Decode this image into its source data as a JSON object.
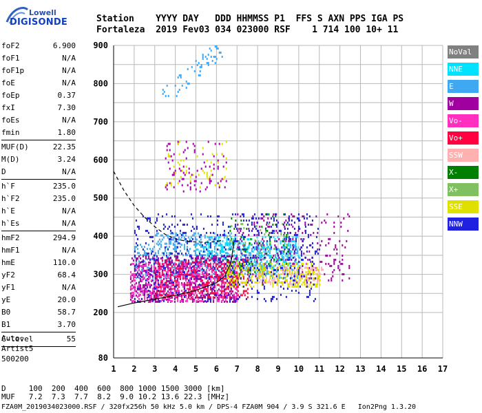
{
  "logo": {
    "line1": "Lowell",
    "line2": "DIGISONDE"
  },
  "header": {
    "line1": "Station    YYYY DAY   DDD HHMMSS P1  FFS S AXN PPS IGA PS",
    "line2": "Fortaleza  2019 Fev03 034 023000 RSF    1 714 100 10+ 11"
  },
  "params": [
    {
      "k": "foF2",
      "v": "6.900"
    },
    {
      "k": "foF1",
      "v": "N/A"
    },
    {
      "k": "foF1p",
      "v": "N/A"
    },
    {
      "k": "foE",
      "v": "N/A"
    },
    {
      "k": "foEp",
      "v": "0.37"
    },
    {
      "k": "fxI",
      "v": "7.30"
    },
    {
      "k": "foEs",
      "v": "N/A"
    },
    {
      "k": "fmin",
      "v": "1.80",
      "sep": true
    },
    {
      "k": "MUF(D)",
      "v": "22.35"
    },
    {
      "k": "M(D)",
      "v": "3.24"
    },
    {
      "k": "D",
      "v": "N/A",
      "sep": true
    },
    {
      "k": "h`F",
      "v": "235.0"
    },
    {
      "k": "h`F2",
      "v": "235.0"
    },
    {
      "k": "h`E",
      "v": "N/A"
    },
    {
      "k": "h`Es",
      "v": "N/A",
      "sep": true
    },
    {
      "k": "hmF2",
      "v": "294.9"
    },
    {
      "k": "hmF1",
      "v": "N/A"
    },
    {
      "k": "hmE",
      "v": "110.0"
    },
    {
      "k": "yF2",
      "v": "68.4"
    },
    {
      "k": "yF1",
      "v": "N/A"
    },
    {
      "k": "yE",
      "v": "20.0"
    },
    {
      "k": "B0",
      "v": "58.7"
    },
    {
      "k": "B1",
      "v": "3.70",
      "sep": true
    },
    {
      "k": "C-level",
      "v": "55",
      "sep": true
    }
  ],
  "auto": {
    "label": "Auto:",
    "artist": "Artist5",
    "number": "500200"
  },
  "legend": [
    {
      "label": "NoVal",
      "color": "#808080"
    },
    {
      "label": "NNE",
      "color": "#00e0ff"
    },
    {
      "label": "E",
      "color": "#40a8f0"
    },
    {
      "label": "W",
      "color": "#a000a0"
    },
    {
      "label": "Vo-",
      "color": "#ff30c0"
    },
    {
      "label": "Vo+",
      "color": "#ff0040"
    },
    {
      "label": "SSW",
      "color": "#ffb0b0"
    },
    {
      "label": "X-",
      "color": "#008000"
    },
    {
      "label": "X+",
      "color": "#80c060"
    },
    {
      "label": "SSE",
      "color": "#e0e000"
    },
    {
      "label": "NNW",
      "color": "#2020e0"
    }
  ],
  "bottom": {
    "d_line": "D     100  200  400  600  800 1000 1500 3000 [km]",
    "muf_line": "MUF   7.2  7.3  7.7  8.2  9.0 10.2 13.6 22.3 [MHz]"
  },
  "footer": "FZA0M_2019034023000.RSF / 320fx256h 50 kHz 5.0 km / DPS-4 FZA0M 904 / 3.9 S 321.6 E   Ion2Png 1.3.20",
  "chart_data": {
    "type": "scatter",
    "xlim": [
      1,
      17
    ],
    "ylim": [
      80,
      900
    ],
    "x_ticks": [
      1,
      2,
      3,
      4,
      5,
      6,
      7,
      8,
      9,
      10,
      11,
      12,
      13,
      14,
      15,
      16,
      17
    ],
    "y_ticks": [
      80,
      200,
      300,
      400,
      500,
      600,
      700,
      800,
      900
    ],
    "grid": true,
    "series": [
      {
        "name": "E",
        "color": "#40a8f0",
        "regions": [
          {
            "x": [
              3.3,
              6.3
            ],
            "y": [
              760,
              900
            ],
            "density": 0.25,
            "trend": "diagonal"
          },
          {
            "x": [
              3.0,
              6.8
            ],
            "y": [
              380,
              410
            ],
            "density": 0.5
          },
          {
            "x": [
              2.0,
              10.0
            ],
            "y": [
              290,
              380
            ],
            "density": 0.5
          }
        ]
      },
      {
        "name": "NNE",
        "color": "#00e0ff",
        "regions": [
          {
            "x": [
              5.0,
              10.2
            ],
            "y": [
              310,
              400
            ],
            "density": 0.4
          }
        ]
      },
      {
        "name": "W",
        "color": "#a000a0",
        "regions": [
          {
            "x": [
              1.8,
              7.0
            ],
            "y": [
              230,
              350
            ],
            "density": 0.55
          },
          {
            "x": [
              3.5,
              6.5
            ],
            "y": [
              520,
              650
            ],
            "density": 0.15
          },
          {
            "x": [
              7.0,
              12.5
            ],
            "y": [
              280,
              460
            ],
            "density": 0.15
          }
        ]
      },
      {
        "name": "Vo-",
        "color": "#ff30c0",
        "regions": [
          {
            "x": [
              1.8,
              7.0
            ],
            "y": [
              230,
              330
            ],
            "density": 0.5
          }
        ]
      },
      {
        "name": "Vo+",
        "color": "#ff0040",
        "regions": [
          {
            "x": [
              3.0,
              7.5
            ],
            "y": [
              240,
              340
            ],
            "density": 0.45
          }
        ]
      },
      {
        "name": "SSW",
        "color": "#ffb0b0",
        "regions": [
          {
            "x": [
              8.0,
              11.2
            ],
            "y": [
              275,
              320
            ],
            "density": 0.4
          }
        ]
      },
      {
        "name": "X-",
        "color": "#008000",
        "regions": [
          {
            "x": [
              6.5,
              9.5
            ],
            "y": [
              300,
              460
            ],
            "density": 0.1
          }
        ]
      },
      {
        "name": "X+",
        "color": "#80c060",
        "regions": [
          {
            "x": [
              6.5,
              9.5
            ],
            "y": [
              290,
              440
            ],
            "density": 0.1
          }
        ]
      },
      {
        "name": "SSE",
        "color": "#e0e000",
        "regions": [
          {
            "x": [
              6.5,
              11.0
            ],
            "y": [
              270,
              330
            ],
            "density": 0.45
          },
          {
            "x": [
              3.5,
              6.5
            ],
            "y": [
              530,
              650
            ],
            "density": 0.1
          }
        ]
      },
      {
        "name": "NNW",
        "color": "#2020e0",
        "regions": [
          {
            "x": [
              2.0,
              11.0
            ],
            "y": [
              230,
              460
            ],
            "density": 0.15
          }
        ]
      }
    ],
    "curves": [
      {
        "style": "dashed",
        "points": [
          [
            1.0,
            570
          ],
          [
            1.5,
            520
          ],
          [
            2.0,
            480
          ],
          [
            2.5,
            450
          ],
          [
            3.0,
            425
          ],
          [
            3.5,
            405
          ],
          [
            4.0,
            393
          ],
          [
            4.5,
            387
          ],
          [
            5.0,
            385
          ],
          [
            5.5,
            384
          ],
          [
            6.0,
            386
          ],
          [
            6.3,
            390
          ]
        ]
      },
      {
        "style": "solid",
        "points": [
          [
            1.2,
            215
          ],
          [
            2.0,
            225
          ],
          [
            3.0,
            235
          ],
          [
            4.0,
            245
          ],
          [
            5.0,
            258
          ],
          [
            6.0,
            278
          ],
          [
            6.4,
            295
          ],
          [
            6.7,
            330
          ],
          [
            6.85,
            385
          ]
        ]
      }
    ]
  }
}
